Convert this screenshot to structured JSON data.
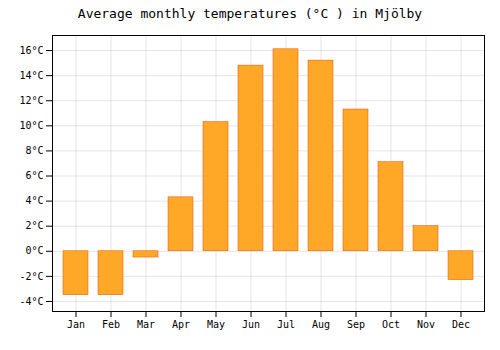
{
  "chart_data": {
    "type": "bar",
    "title": "Average monthly temperatures (°C ) in Mjölby",
    "categories": [
      "Jan",
      "Feb",
      "Mar",
      "Apr",
      "May",
      "Jun",
      "Jul",
      "Aug",
      "Sep",
      "Oct",
      "Nov",
      "Dec"
    ],
    "values": [
      -3.5,
      -3.5,
      -0.5,
      4.3,
      10.3,
      14.8,
      16.1,
      15.2,
      11.3,
      7.1,
      2.0,
      -2.3
    ],
    "color": "#FFA726",
    "ylim": [
      -4.8,
      17.2
    ],
    "yticks": [
      {
        "value": -4,
        "label": "-4°C"
      },
      {
        "value": -2,
        "label": "-2°C"
      },
      {
        "value": 0,
        "label": "0°C"
      },
      {
        "value": 2,
        "label": "2°C"
      },
      {
        "value": 4,
        "label": "4°C"
      },
      {
        "value": 6,
        "label": "6°C"
      },
      {
        "value": 8,
        "label": "8°C"
      },
      {
        "value": 10,
        "label": "10°C"
      },
      {
        "value": 12,
        "label": "12°C"
      },
      {
        "value": 14,
        "label": "14°C"
      },
      {
        "value": 16,
        "label": "16°C"
      }
    ],
    "grid": true
  }
}
